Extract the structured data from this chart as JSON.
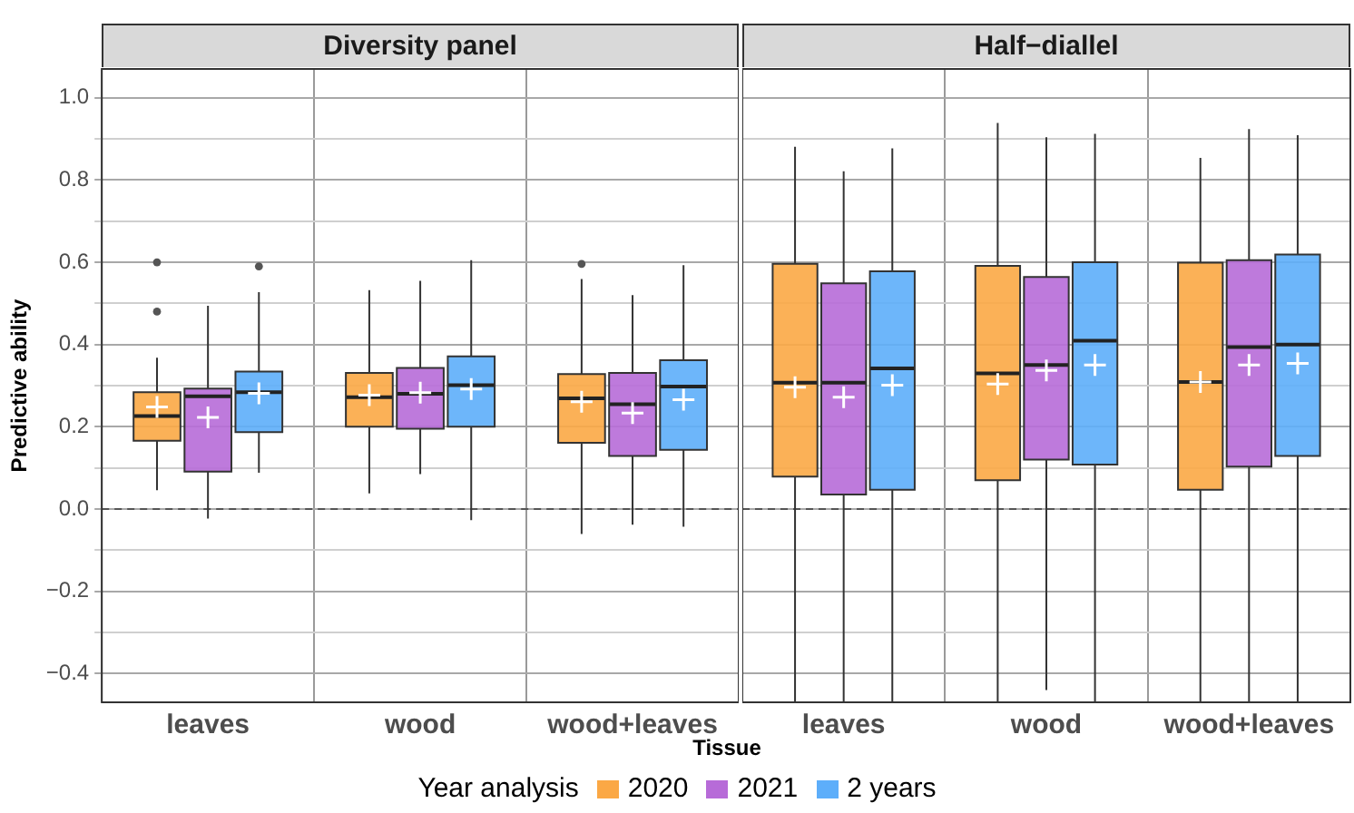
{
  "chart_data": [
    {
      "type": "box",
      "title": "Diversity panel",
      "xlabel": "Tissue",
      "ylabel": "Predictive ability",
      "legend_title": "Year analysis",
      "legend": "bottom",
      "grid": true,
      "categories": [
        "leaves",
        "wood",
        "wood+leaves"
      ],
      "ylim": [
        -0.47,
        1.07
      ],
      "yticks": [
        {
          "value": -0.4,
          "label": "−0.4"
        },
        {
          "value": -0.3,
          "label": null
        },
        {
          "value": -0.2,
          "label": "−0.2"
        },
        {
          "value": -0.1,
          "label": null
        },
        {
          "value": 0,
          "label": "0.0"
        },
        {
          "value": 0.1,
          "label": null
        },
        {
          "value": 0.2,
          "label": "0.2"
        },
        {
          "value": 0.3,
          "label": null
        },
        {
          "value": 0.4,
          "label": "0.4"
        },
        {
          "value": 0.5,
          "label": null
        },
        {
          "value": 0.6,
          "label": "0.6"
        },
        {
          "value": 0.7,
          "label": null
        },
        {
          "value": 0.8,
          "label": "0.8"
        },
        {
          "value": 0.9,
          "label": null
        },
        {
          "value": 1,
          "label": "1.0"
        }
      ],
      "ref_lines": [
        {
          "axis": "y",
          "value": 0,
          "line_style": "dashed",
          "color": "#555555"
        }
      ],
      "series": [
        {
          "name": "2020",
          "color": "#fba845",
          "boxes": [
            {
              "low": 0.046,
              "q1": 0.166,
              "median": 0.226,
              "q3": 0.284,
              "high": 0.368,
              "mean": 0.248,
              "outliers": [
                0.6,
                0.48
              ]
            },
            {
              "low": 0.038,
              "q1": 0.2,
              "median": 0.272,
              "q3": 0.331,
              "high": 0.532,
              "mean": 0.277
            },
            {
              "low": -0.061,
              "q1": 0.161,
              "median": 0.269,
              "q3": 0.328,
              "high": 0.559,
              "mean": 0.261,
              "outliers": [
                0.596
              ]
            }
          ]
        },
        {
          "name": "2021",
          "color": "#b76bd8",
          "boxes": [
            {
              "low": -0.023,
              "q1": 0.091,
              "median": 0.274,
              "q3": 0.293,
              "high": 0.494,
              "mean": 0.223
            },
            {
              "low": 0.085,
              "q1": 0.195,
              "median": 0.28,
              "q3": 0.343,
              "high": 0.555,
              "mean": 0.283
            },
            {
              "low": -0.038,
              "q1": 0.129,
              "median": 0.255,
              "q3": 0.331,
              "high": 0.52,
              "mean": 0.233
            }
          ]
        },
        {
          "name": "2 years",
          "color": "#5daefa",
          "boxes": [
            {
              "low": 0.088,
              "q1": 0.187,
              "median": 0.284,
              "q3": 0.334,
              "high": 0.527,
              "mean": 0.281,
              "outliers": [
                0.59
              ]
            },
            {
              "low": -0.027,
              "q1": 0.2,
              "median": 0.301,
              "q3": 0.371,
              "high": 0.605,
              "mean": 0.292
            },
            {
              "low": -0.043,
              "q1": 0.144,
              "median": 0.298,
              "q3": 0.362,
              "high": 0.593,
              "mean": 0.266
            }
          ]
        }
      ]
    },
    {
      "type": "box",
      "title": "Half−diallel",
      "grid": true,
      "tick_labels": "x",
      "categories": [
        "leaves",
        "wood",
        "wood+leaves"
      ],
      "ylim": [
        -0.47,
        1.07
      ],
      "yticks": [
        -0.4,
        {
          "value": -0.3,
          "label": null
        },
        -0.2,
        {
          "value": -0.1,
          "label": null
        },
        0,
        {
          "value": 0.1,
          "label": null
        },
        0.2,
        {
          "value": 0.3,
          "label": null
        },
        0.4,
        {
          "value": 0.5,
          "label": null
        },
        0.6,
        {
          "value": 0.7,
          "label": null
        },
        0.8,
        {
          "value": 0.9,
          "label": null
        },
        1
      ],
      "ref_lines": [
        {
          "axis": "y",
          "value": 0,
          "line_style": "dashed",
          "color": "#555555"
        }
      ],
      "series": [
        {
          "color": "#fba845",
          "boxes": [
            {
              "low": -0.47,
              "q1": 0.079,
              "median": 0.307,
              "q3": 0.596,
              "high": 0.881,
              "mean": 0.296
            },
            {
              "low": -0.47,
              "q1": 0.07,
              "median": 0.33,
              "q3": 0.591,
              "high": 0.939,
              "mean": 0.304
            },
            {
              "low": -0.47,
              "q1": 0.047,
              "median": 0.309,
              "q3": 0.599,
              "high": 0.854,
              "mean": 0.309
            }
          ]
        },
        {
          "color": "#b76bd8",
          "boxes": [
            {
              "low": -0.47,
              "q1": 0.035,
              "median": 0.307,
              "q3": 0.549,
              "high": 0.821,
              "mean": 0.272
            },
            {
              "low": -0.44,
              "q1": 0.12,
              "median": 0.35,
              "q3": 0.564,
              "high": 0.904,
              "mean": 0.337
            },
            {
              "low": -0.47,
              "q1": 0.103,
              "median": 0.394,
              "q3": 0.605,
              "high": 0.924,
              "mean": 0.35
            }
          ]
        },
        {
          "color": "#5daefa",
          "boxes": [
            {
              "low": -0.47,
              "q1": 0.047,
              "median": 0.342,
              "q3": 0.578,
              "high": 0.877,
              "mean": 0.301
            },
            {
              "low": -0.47,
              "q1": 0.108,
              "median": 0.409,
              "q3": 0.6,
              "high": 0.912,
              "mean": 0.35
            },
            {
              "low": -0.47,
              "q1": 0.129,
              "median": 0.4,
              "q3": 0.619,
              "high": 0.909,
              "mean": 0.354
            }
          ]
        }
      ]
    }
  ]
}
